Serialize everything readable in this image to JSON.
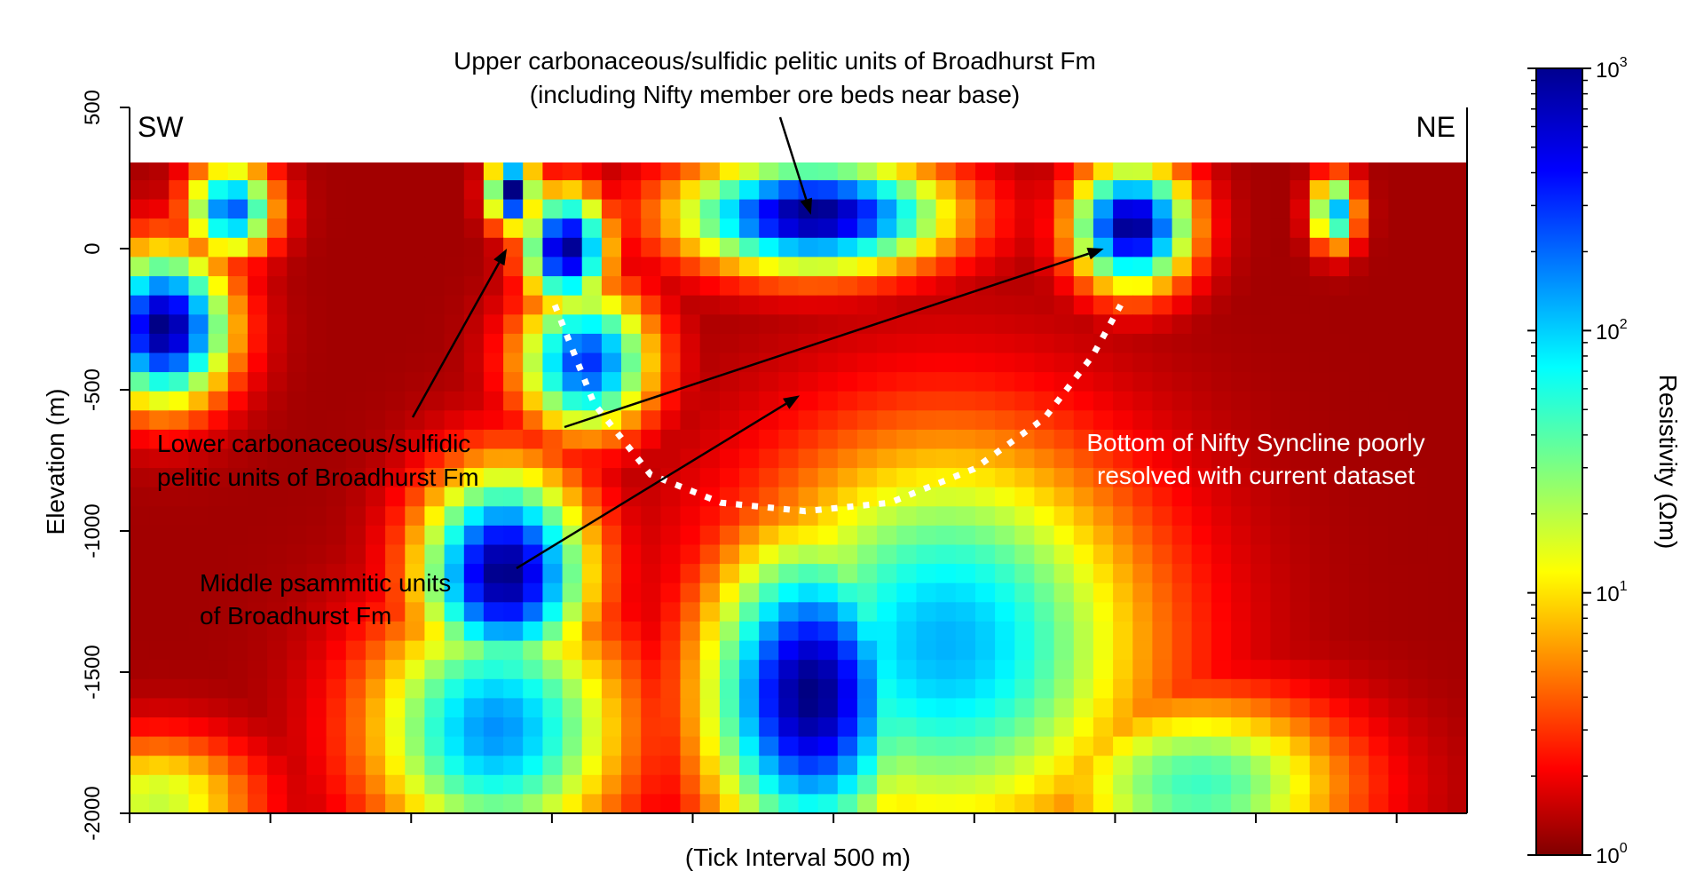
{
  "chart_data": {
    "type": "heatmap",
    "title": "",
    "subtitle": "",
    "xlabel": "(Tick Interval 500 m)",
    "ylabel": "Elevation (m)",
    "ylim": [
      -2000,
      500
    ],
    "xlim": [
      0,
      4750
    ],
    "x_tick_interval_m": 500,
    "x_ticks": [
      0,
      500,
      1000,
      1500,
      2000,
      2500,
      3000,
      3500,
      4000,
      4500
    ],
    "y_ticks": [
      500,
      0,
      -500,
      -1000,
      -1500,
      -2000
    ],
    "y_tick_labels": [
      "500",
      "0",
      "-500",
      "-1000",
      "-1500",
      "-2000"
    ],
    "surface_elevation_m": 310,
    "orientation_left": "SW",
    "orientation_right": "NE",
    "colorbar": {
      "label": "Resistivity (Ωm)",
      "scale": "log",
      "range_ohm_m": [
        1,
        1000
      ],
      "tick_labels": [
        {
          "base": "10",
          "exp": "3"
        },
        {
          "base": "10",
          "exp": "2"
        },
        {
          "base": "10",
          "exp": "1"
        },
        {
          "base": "10",
          "exp": "0"
        }
      ],
      "colormap": "jet_reversed",
      "low_color": "#800000",
      "high_color": "#00008f"
    },
    "background_log10_resistivity": 2.9,
    "anomalies": [
      {
        "x": 120,
        "y": -280,
        "rx": 260,
        "ry": 300,
        "log10_min": 0.0
      },
      {
        "x": 360,
        "y": 140,
        "rx": 170,
        "ry": 180,
        "log10_min": 0.6
      },
      {
        "x": 1360,
        "y": 200,
        "rx": 90,
        "ry": 140,
        "log10_min": 0.0
      },
      {
        "x": 1550,
        "y": 0,
        "rx": 160,
        "ry": 220,
        "log10_min": 0.0
      },
      {
        "x": 1620,
        "y": -400,
        "rx": 260,
        "ry": 280,
        "log10_min": 0.5
      },
      {
        "x": 1330,
        "y": -1150,
        "rx": 330,
        "ry": 400,
        "log10_min": 0.0
      },
      {
        "x": 1300,
        "y": -1700,
        "rx": 500,
        "ry": 500,
        "log10_min": 0.8
      },
      {
        "x": 2430,
        "y": 120,
        "rx": 520,
        "ry": 220,
        "log10_min": 0.0
      },
      {
        "x": 2420,
        "y": -1580,
        "rx": 420,
        "ry": 620,
        "log10_min": 0.0
      },
      {
        "x": 2900,
        "y": -1400,
        "rx": 800,
        "ry": 800,
        "log10_min": 0.9
      },
      {
        "x": 3560,
        "y": 80,
        "rx": 230,
        "ry": 240,
        "log10_min": 0.0
      },
      {
        "x": 4280,
        "y": 130,
        "rx": 90,
        "ry": 140,
        "log10_min": 0.85
      },
      {
        "x": 3800,
        "y": -1900,
        "rx": 600,
        "ry": 350,
        "log10_min": 1.3
      },
      {
        "x": 100,
        "y": -1950,
        "rx": 400,
        "ry": 250,
        "log10_min": 1.7
      }
    ],
    "syncline_bottom_trace": [
      [
        1510,
        -200
      ],
      [
        1650,
        -550
      ],
      [
        1850,
        -800
      ],
      [
        2100,
        -900
      ],
      [
        2400,
        -930
      ],
      [
        2700,
        -900
      ],
      [
        3000,
        -780
      ],
      [
        3250,
        -600
      ],
      [
        3420,
        -380
      ],
      [
        3520,
        -200
      ]
    ],
    "annotations": [
      {
        "id": "upper-units",
        "text_lines": [
          "Upper carbonaceous/sulfidic pelitic units of Broadhurst Fm",
          "(including Nifty member ore beds near base)"
        ],
        "arrows": [
          {
            "x": 2420,
            "y": 120
          }
        ],
        "color": "#000000"
      },
      {
        "id": "lower-units",
        "text_lines": [
          "Lower carbonaceous/sulfidic",
          "pelitic units of Broadhurst Fm"
        ],
        "arrows": [
          {
            "x": 1340,
            "y": 0
          },
          {
            "x": 3460,
            "y": 0
          }
        ],
        "color": "#000000"
      },
      {
        "id": "middle-units",
        "text_lines": [
          "Middle psammitic units",
          "of Broadhurst Fm"
        ],
        "arrows": [
          {
            "x": 2380,
            "y": -520
          }
        ],
        "color": "#000000"
      },
      {
        "id": "syncline-note",
        "text_lines": [
          "Bottom of Nifty Syncline poorly",
          "resolved with current dataset"
        ],
        "arrows": [],
        "color": "#ffffff"
      }
    ]
  }
}
